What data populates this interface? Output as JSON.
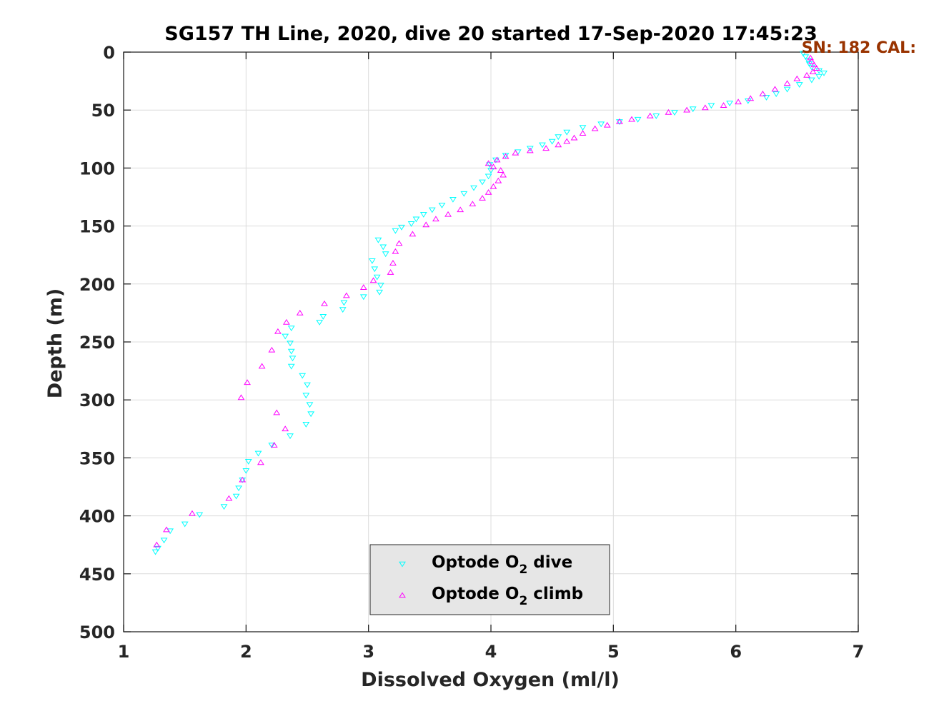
{
  "chart_data": {
    "type": "scatter",
    "title": "SG157 TH Line, 2020, dive 20 started 17-Sep-2020 17:45:23",
    "annotation": "SN: 182  CAL:",
    "xlabel": "Dissolved Oxygen (ml/l)",
    "ylabel": "Depth (m)",
    "xlim": [
      1,
      7
    ],
    "ylim": [
      0,
      500
    ],
    "y_reversed": true,
    "grid": true,
    "legend_position": "bottom-center",
    "xticks": [
      "1",
      "2",
      "3",
      "4",
      "5",
      "6",
      "7"
    ],
    "yticks": [
      "0",
      "50",
      "100",
      "150",
      "200",
      "250",
      "300",
      "350",
      "400",
      "450",
      "500"
    ],
    "colors": {
      "dive": "#00ffff",
      "climb": "#ff00ff",
      "annotation": "#993300",
      "legend_bg": "#e6e6e6"
    },
    "series": [
      {
        "name": "Optode O2 dive",
        "legend_main": "Optode O",
        "legend_sub": "2",
        "legend_tail": " dive",
        "marker": "triangle-down",
        "points": [
          [
            6.55,
            1
          ],
          [
            6.57,
            4
          ],
          [
            6.59,
            7
          ],
          [
            6.6,
            10
          ],
          [
            6.62,
            13
          ],
          [
            6.68,
            16
          ],
          [
            6.72,
            18
          ],
          [
            6.68,
            21
          ],
          [
            6.62,
            24
          ],
          [
            6.52,
            28
          ],
          [
            6.42,
            32
          ],
          [
            6.33,
            36
          ],
          [
            6.25,
            39
          ],
          [
            6.1,
            42
          ],
          [
            5.95,
            44
          ],
          [
            5.8,
            46
          ],
          [
            5.65,
            49
          ],
          [
            5.5,
            52
          ],
          [
            5.35,
            55
          ],
          [
            5.2,
            58
          ],
          [
            5.05,
            60
          ],
          [
            4.9,
            62
          ],
          [
            4.75,
            65
          ],
          [
            4.62,
            69
          ],
          [
            4.55,
            73
          ],
          [
            4.5,
            77
          ],
          [
            4.42,
            80
          ],
          [
            4.32,
            83
          ],
          [
            4.22,
            86
          ],
          [
            4.12,
            89
          ],
          [
            4.04,
            93
          ],
          [
            3.99,
            97
          ],
          [
            4.0,
            102
          ],
          [
            3.98,
            107
          ],
          [
            3.93,
            112
          ],
          [
            3.86,
            117
          ],
          [
            3.78,
            122
          ],
          [
            3.69,
            127
          ],
          [
            3.6,
            132
          ],
          [
            3.52,
            136
          ],
          [
            3.45,
            140
          ],
          [
            3.39,
            144
          ],
          [
            3.35,
            148
          ],
          [
            3.27,
            151
          ],
          [
            3.22,
            154
          ],
          [
            3.08,
            162
          ],
          [
            3.12,
            168
          ],
          [
            3.14,
            174
          ],
          [
            3.03,
            180
          ],
          [
            3.05,
            187
          ],
          [
            3.07,
            194
          ],
          [
            3.1,
            201
          ],
          [
            3.09,
            207
          ],
          [
            2.96,
            211
          ],
          [
            2.8,
            216
          ],
          [
            2.79,
            222
          ],
          [
            2.63,
            228
          ],
          [
            2.6,
            233
          ],
          [
            2.37,
            238
          ],
          [
            2.32,
            245
          ],
          [
            2.36,
            251
          ],
          [
            2.37,
            258
          ],
          [
            2.38,
            264
          ],
          [
            2.37,
            271
          ],
          [
            2.46,
            279
          ],
          [
            2.5,
            287
          ],
          [
            2.49,
            296
          ],
          [
            2.52,
            304
          ],
          [
            2.53,
            312
          ],
          [
            2.49,
            321
          ],
          [
            2.36,
            331
          ],
          [
            2.21,
            339
          ],
          [
            2.1,
            346
          ],
          [
            2.02,
            353
          ],
          [
            2.0,
            361
          ],
          [
            1.97,
            369
          ],
          [
            1.94,
            376
          ],
          [
            1.92,
            383
          ],
          [
            1.82,
            392
          ],
          [
            1.62,
            399
          ],
          [
            1.5,
            407
          ],
          [
            1.38,
            413
          ],
          [
            1.33,
            421
          ],
          [
            1.28,
            428
          ],
          [
            1.26,
            431
          ]
        ]
      },
      {
        "name": "Optode O2 climb",
        "legend_main": "Optode O",
        "legend_sub": "2",
        "legend_tail": " climb",
        "marker": "triangle-up",
        "points": [
          [
            3.47,
            149
          ],
          [
            3.55,
            144
          ],
          [
            3.65,
            140
          ],
          [
            3.75,
            136
          ],
          [
            3.85,
            131
          ],
          [
            3.93,
            126
          ],
          [
            3.98,
            121
          ],
          [
            4.02,
            116
          ],
          [
            4.06,
            111
          ],
          [
            4.1,
            106
          ],
          [
            4.08,
            102
          ],
          [
            4.02,
            99
          ],
          [
            3.98,
            96
          ],
          [
            4.05,
            93
          ],
          [
            4.12,
            90
          ],
          [
            4.2,
            87
          ],
          [
            4.32,
            85
          ],
          [
            4.45,
            83
          ],
          [
            4.55,
            80
          ],
          [
            4.62,
            77
          ],
          [
            4.68,
            74
          ],
          [
            4.75,
            70
          ],
          [
            4.85,
            66
          ],
          [
            4.95,
            63
          ],
          [
            5.05,
            60
          ],
          [
            5.15,
            58
          ],
          [
            5.3,
            55
          ],
          [
            5.45,
            52
          ],
          [
            5.6,
            50
          ],
          [
            5.75,
            48
          ],
          [
            5.9,
            46
          ],
          [
            6.02,
            43
          ],
          [
            6.12,
            40
          ],
          [
            6.22,
            36
          ],
          [
            6.32,
            32
          ],
          [
            6.42,
            27
          ],
          [
            6.5,
            23
          ],
          [
            6.58,
            20
          ],
          [
            6.63,
            17
          ],
          [
            6.66,
            14
          ],
          [
            6.64,
            11
          ],
          [
            6.62,
            8
          ],
          [
            6.61,
            5
          ],
          [
            3.36,
            157
          ],
          [
            3.25,
            165
          ],
          [
            3.22,
            172
          ],
          [
            3.2,
            182
          ],
          [
            3.18,
            190
          ],
          [
            3.04,
            197
          ],
          [
            2.96,
            203
          ],
          [
            2.82,
            210
          ],
          [
            2.64,
            217
          ],
          [
            2.44,
            225
          ],
          [
            2.33,
            233
          ],
          [
            2.26,
            241
          ],
          [
            2.21,
            257
          ],
          [
            2.13,
            271
          ],
          [
            2.01,
            285
          ],
          [
            1.96,
            298
          ],
          [
            2.25,
            311
          ],
          [
            2.32,
            325
          ],
          [
            2.23,
            339
          ],
          [
            2.12,
            354
          ],
          [
            1.97,
            369
          ],
          [
            1.86,
            385
          ],
          [
            1.56,
            398
          ],
          [
            1.35,
            412
          ],
          [
            1.27,
            425
          ]
        ]
      }
    ]
  }
}
